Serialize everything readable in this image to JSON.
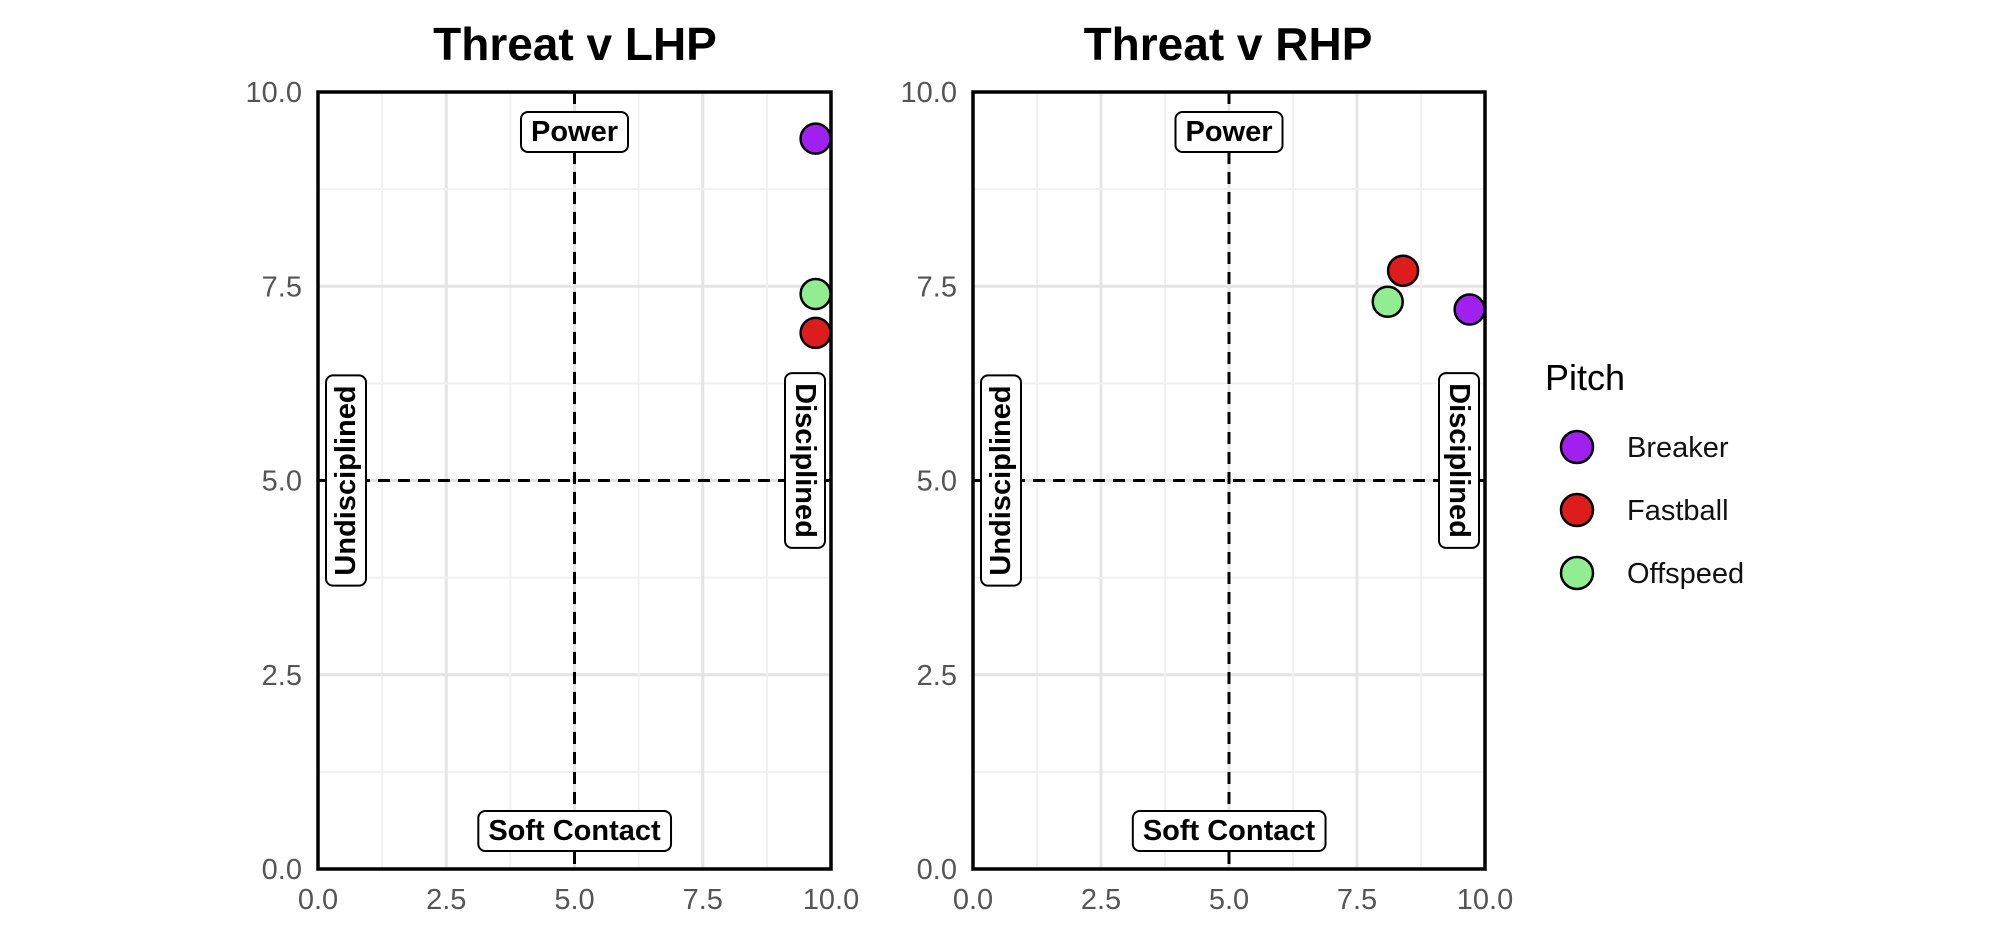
{
  "chart_data": [
    {
      "type": "scatter",
      "title": "Threat v LHP",
      "xlabel": "",
      "ylabel": "",
      "xlim": [
        0,
        10
      ],
      "ylim": [
        0,
        10
      ],
      "x_ticks": [
        "0.0",
        "2.5",
        "5.0",
        "7.5",
        "10.0"
      ],
      "y_ticks": [
        "0.0",
        "2.5",
        "5.0",
        "7.5",
        "10.0"
      ],
      "reference_lines": {
        "x": 5,
        "y": 5
      },
      "quadrant_labels": {
        "top": "Power",
        "bottom": "Soft Contact",
        "left": "Undisciplined",
        "right": "Disciplined"
      },
      "points": [
        {
          "series": "Breaker",
          "x": 9.7,
          "y": 9.4
        },
        {
          "series": "Offspeed",
          "x": 9.7,
          "y": 7.4
        },
        {
          "series": "Fastball",
          "x": 9.7,
          "y": 6.9
        }
      ]
    },
    {
      "type": "scatter",
      "title": "Threat v RHP",
      "xlabel": "",
      "ylabel": "",
      "xlim": [
        0,
        10
      ],
      "ylim": [
        0,
        10
      ],
      "x_ticks": [
        "0.0",
        "2.5",
        "5.0",
        "7.5",
        "10.0"
      ],
      "y_ticks": [
        "0.0",
        "2.5",
        "5.0",
        "7.5",
        "10.0"
      ],
      "reference_lines": {
        "x": 5,
        "y": 5
      },
      "quadrant_labels": {
        "top": "Power",
        "bottom": "Soft Contact",
        "left": "Undisciplined",
        "right": "Disciplined"
      },
      "points": [
        {
          "series": "Fastball",
          "x": 8.4,
          "y": 7.7
        },
        {
          "series": "Offspeed",
          "x": 8.1,
          "y": 7.3
        },
        {
          "series": "Breaker",
          "x": 9.7,
          "y": 7.2
        }
      ]
    }
  ],
  "legend": {
    "title": "Pitch",
    "items": [
      {
        "name": "Breaker",
        "color": "#a020f0"
      },
      {
        "name": "Fastball",
        "color": "#dd1c1c"
      },
      {
        "name": "Offspeed",
        "color": "#90ee90"
      }
    ]
  }
}
